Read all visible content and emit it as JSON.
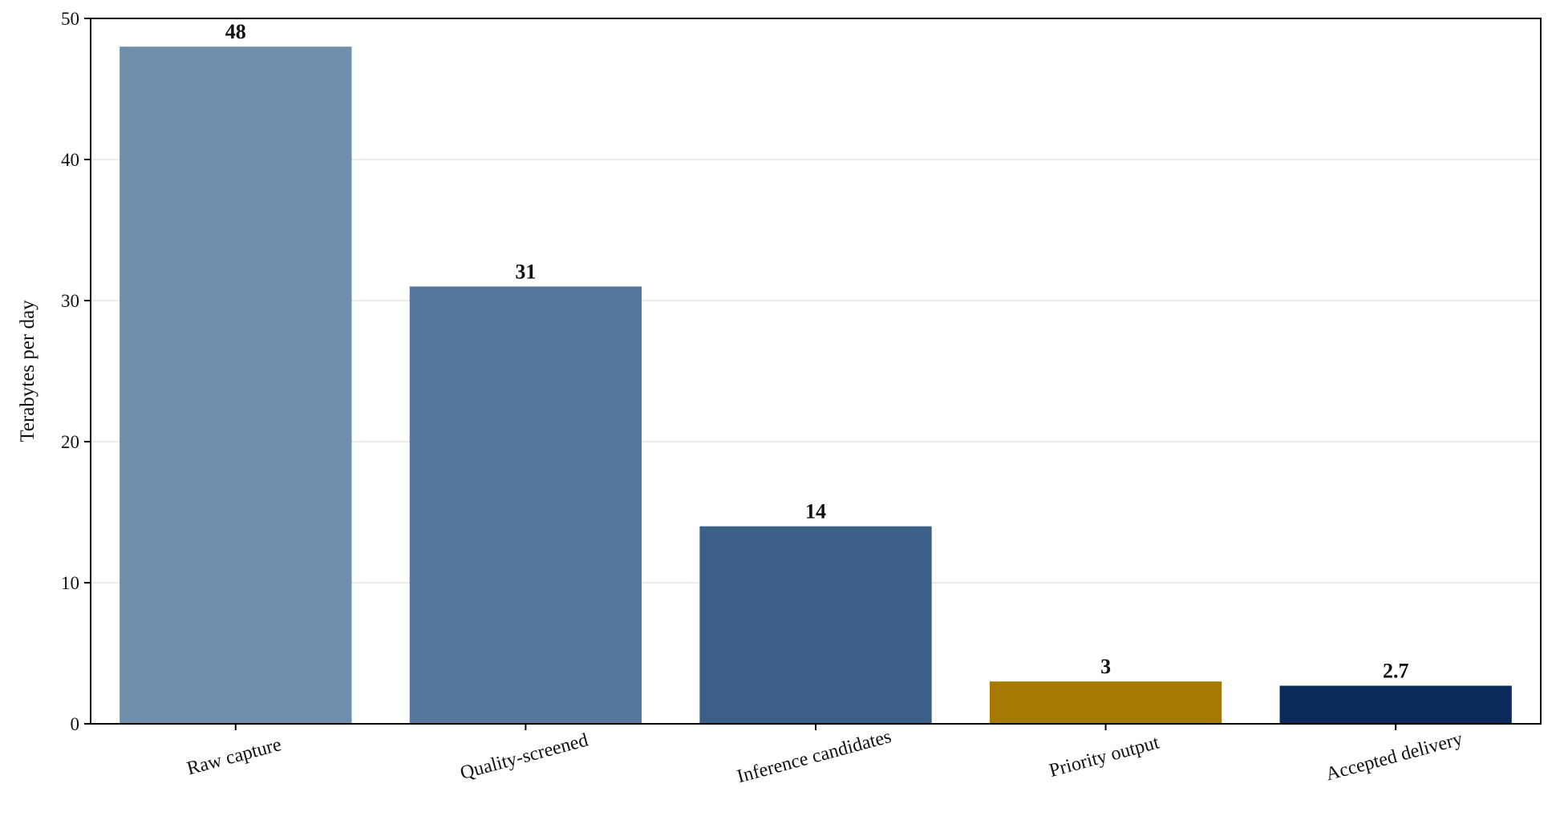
{
  "chart_data": {
    "type": "bar",
    "categories": [
      "Raw capture",
      "Quality-screened",
      "Inference candidates",
      "Priority output",
      "Accepted delivery"
    ],
    "values": [
      48,
      31,
      14,
      3,
      2.7
    ],
    "value_labels": [
      "48",
      "31",
      "14",
      "3",
      "2.7"
    ],
    "colors": [
      "#6e8fac",
      "#54779b",
      "#3c5f87",
      "#a67a00",
      "#0b2a5c"
    ],
    "title": "",
    "xlabel": "",
    "ylabel": "Terabytes per day",
    "ylim": [
      0,
      50
    ],
    "yticks": [
      0,
      10,
      20,
      30,
      40,
      50
    ],
    "grid": "horizontal",
    "legend": "none"
  }
}
